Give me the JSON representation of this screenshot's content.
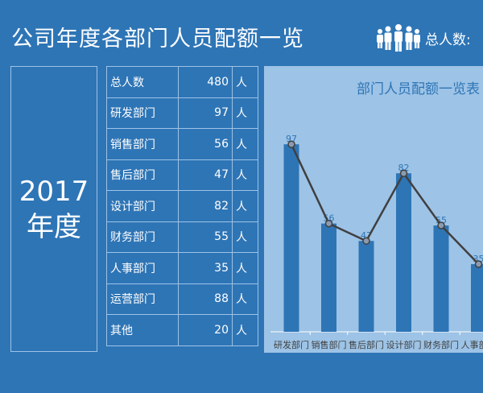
{
  "header": {
    "title": "公司年度各部门人员配额一览",
    "total_label": "总人数:",
    "icon": "people-group-icon"
  },
  "year": {
    "number": "2017",
    "suffix": "年度"
  },
  "table": {
    "rows": [
      {
        "name": "总人数",
        "value": "480",
        "unit": "人"
      },
      {
        "name": "研发部门",
        "value": "97",
        "unit": "人"
      },
      {
        "name": "销售部门",
        "value": "56",
        "unit": "人"
      },
      {
        "name": "售后部门",
        "value": "47",
        "unit": "人"
      },
      {
        "name": "设计部门",
        "value": "82",
        "unit": "人"
      },
      {
        "name": "财务部门",
        "value": "55",
        "unit": "人"
      },
      {
        "name": "人事部门",
        "value": "35",
        "unit": "人"
      },
      {
        "name": "运营部门",
        "value": "88",
        "unit": "人"
      },
      {
        "name": "其他",
        "value": "20",
        "unit": "人"
      }
    ]
  },
  "colors": {
    "background": "#2e75b6",
    "panel": "#9dc3e6",
    "bar": "#2e75b6",
    "line": "#404040"
  },
  "chart_data": {
    "type": "bar+line",
    "title": "部门人员配额一览表",
    "categories": [
      "研发部门",
      "销售部门",
      "售后部门",
      "设计部门",
      "财务部门",
      "人事部门"
    ],
    "values": [
      97,
      56,
      47,
      82,
      55,
      35
    ],
    "data_labels": true,
    "grid": false
  }
}
